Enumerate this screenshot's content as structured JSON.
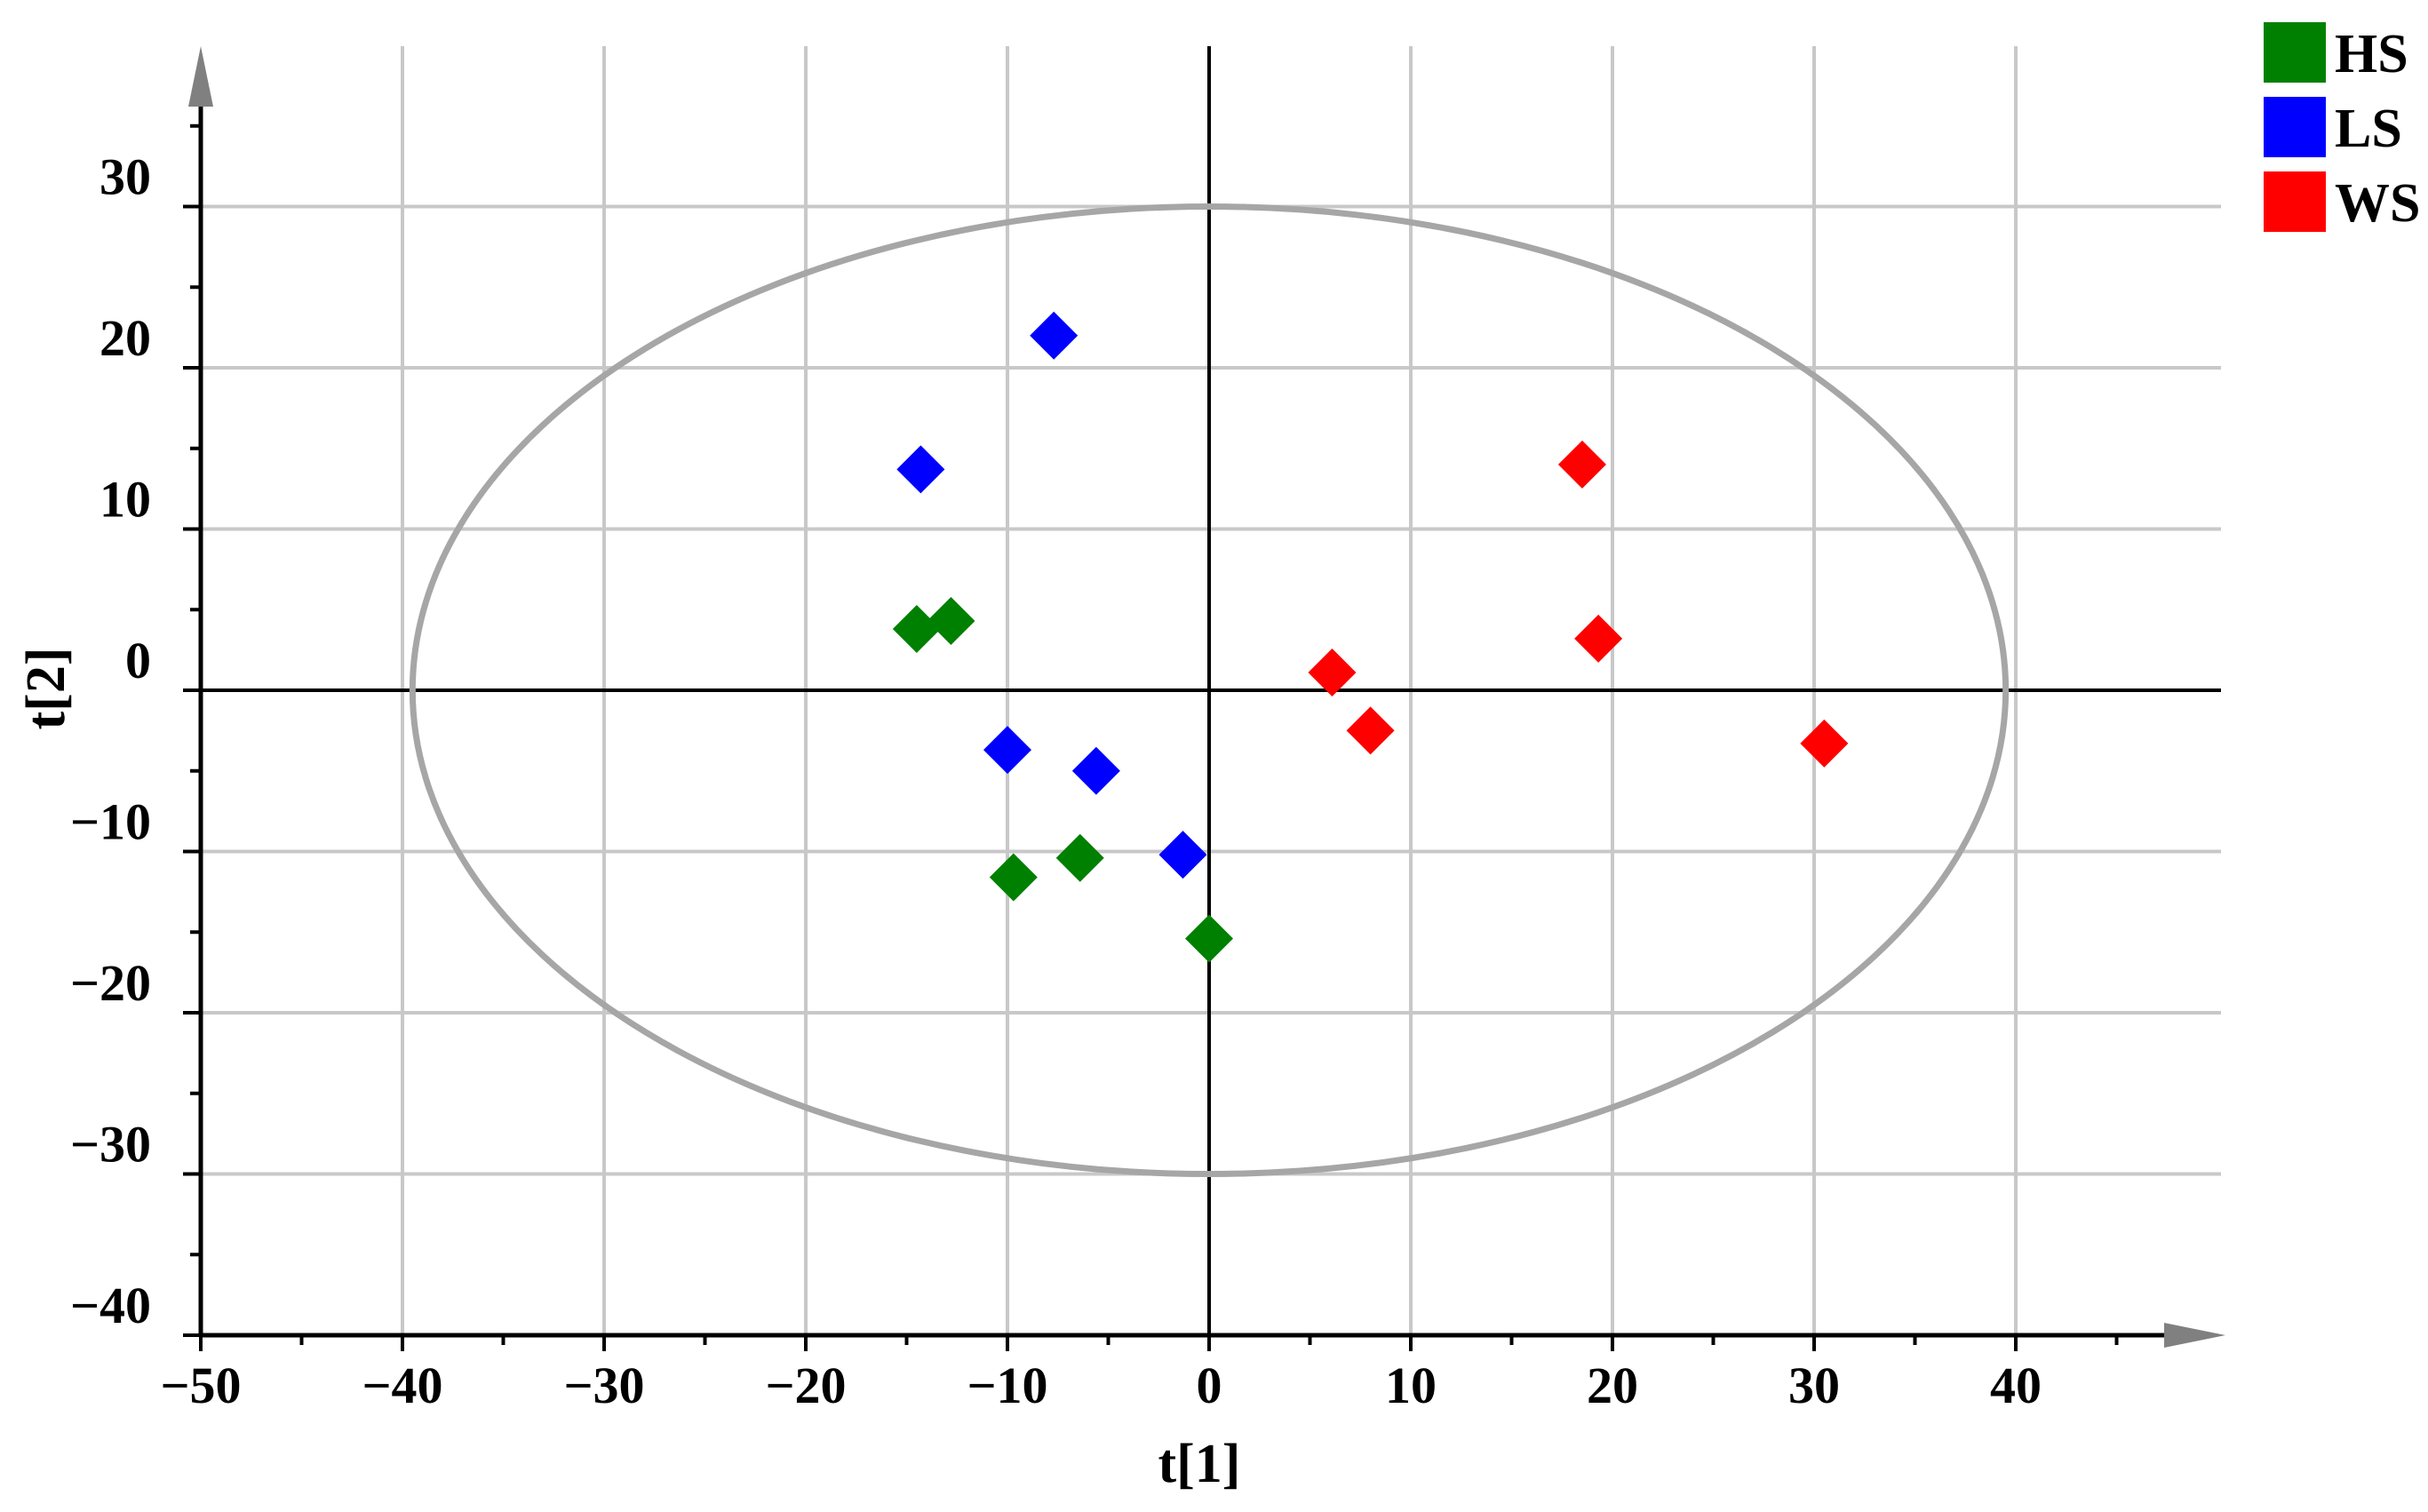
{
  "chart_data": {
    "type": "scatter",
    "title": "",
    "xlabel": "t[1]",
    "ylabel": "t[2]",
    "xlim": [
      -50,
      50
    ],
    "ylim": [
      -40,
      40
    ],
    "x_ticks": [
      -50,
      -40,
      -30,
      -20,
      -10,
      0,
      10,
      20,
      30,
      40
    ],
    "x_tick_labels": [
      "−50",
      "−40",
      "−30",
      "−20",
      "−10",
      "0",
      "10",
      "20",
      "30",
      "40"
    ],
    "y_ticks": [
      -40,
      -30,
      -20,
      -10,
      0,
      10,
      20,
      30
    ],
    "y_tick_labels": [
      "−40",
      "−30",
      "−20",
      "−10",
      "0",
      "10",
      "20",
      "30"
    ],
    "grid": true,
    "marker": "diamond",
    "legend_position": "top-right",
    "ellipse": {
      "center": [
        0,
        0
      ],
      "rx": 39.5,
      "ry": 30,
      "color": "#A6A6A6"
    },
    "series": [
      {
        "name": "HS",
        "color": "#008000",
        "points": [
          [
            -14.5,
            3.8
          ],
          [
            -12.8,
            4.3
          ],
          [
            -9.7,
            -11.6
          ],
          [
            -6.4,
            -10.4
          ],
          [
            0.0,
            -15.4
          ]
        ]
      },
      {
        "name": "LS",
        "color": "#0000FF",
        "points": [
          [
            -7.7,
            22.0
          ],
          [
            -14.3,
            13.7
          ],
          [
            -10.0,
            -3.7
          ],
          [
            -5.6,
            -5.0
          ],
          [
            -1.3,
            -10.2
          ]
        ]
      },
      {
        "name": "WS",
        "color": "#FF0000",
        "points": [
          [
            18.5,
            14.0
          ],
          [
            19.3,
            3.2
          ],
          [
            6.1,
            1.1
          ],
          [
            8.0,
            -2.5
          ],
          [
            30.5,
            -3.3
          ]
        ]
      }
    ]
  }
}
